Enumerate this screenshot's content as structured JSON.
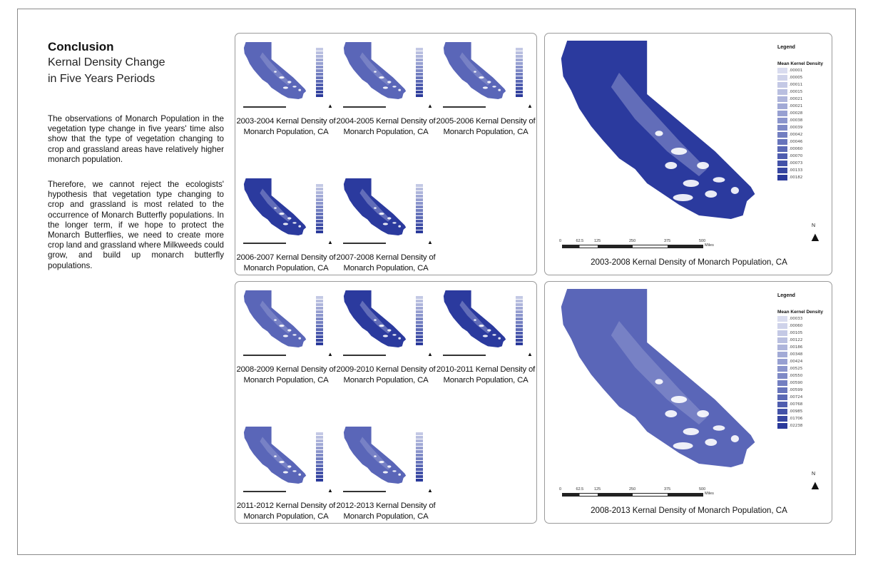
{
  "conclusion": {
    "title": "Conclusion",
    "subtitle_line1": "Kernal Density Change",
    "subtitle_line2": "in Five Years Periods",
    "paragraph1": "The observations of Monarch Population in the vegetation type change in five years' time also show that the type of vegetation changing to crop and grassland areas have relatively higher monarch population.",
    "paragraph2": "Therefore, we cannot reject the ecologists' hypothesis that vegetation type changing to crop and grassland is most related to the occurrence of Monarch Butterfly populations. In the longer term, if we hope to protect the Monarch Butterflies, we need to create more crop land and grassland where Milkweeds could grow, and build up monarch butterfly populations."
  },
  "top_panel": {
    "maps": [
      {
        "line1": "2003-2004 Kernal Density of",
        "line2": "Monarch Population, CA"
      },
      {
        "line1": "2004-2005 Kernal Density of",
        "line2": "Monarch Population, CA"
      },
      {
        "line1": "2005-2006 Kernal Density of",
        "line2": "Monarch Population, CA"
      },
      {
        "line1": "2006-2007 Kernal Density of",
        "line2": "Monarch Population, CA"
      },
      {
        "line1": "2007-2008 Kernal Density of",
        "line2": "Monarch Population, CA"
      }
    ]
  },
  "bottom_panel": {
    "maps": [
      {
        "line1": "2008-2009 Kernal Density of",
        "line2": "Monarch Population, CA"
      },
      {
        "line1": "2009-2010 Kernal Density of",
        "line2": "Monarch Population, CA"
      },
      {
        "line1": "2010-2011 Kernal Density of",
        "line2": "Monarch Population, CA"
      },
      {
        "line1": "2011-2012 Kernal Density of",
        "line2": "Monarch Population, CA"
      },
      {
        "line1": "2012-2013 Kernal Density of",
        "line2": "Monarch Population, CA"
      }
    ]
  },
  "big_map_top": {
    "caption": "2003-2008 Kernal Density of Monarch Population, CA",
    "legend_title": "Legend",
    "legend_subtitle": "Mean Kernel Density",
    "legend_values": [
      ".00001",
      ".00005",
      ".00011",
      ".00015",
      ".00021",
      ".00021",
      ".00028",
      ".00038",
      ".00039",
      ".00042",
      ".00046",
      ".00060",
      ".00070",
      ".00073",
      ".00133",
      ".00182"
    ],
    "scale_ticks": [
      "0",
      "62.5",
      "125",
      "250",
      "375",
      "500"
    ],
    "scale_unit": "Miles",
    "north": "N"
  },
  "big_map_bottom": {
    "caption": "2008-2013 Kernal Density of Monarch Population, CA",
    "legend_title": "Legend",
    "legend_subtitle": "Mean Kernel Density",
    "legend_values": [
      ".00033",
      ".00060",
      ".00105",
      ".00122",
      ".00186",
      ".00348",
      ".00424",
      ".00525",
      ".00550",
      ".00590",
      ".00599",
      ".00724",
      ".00768",
      ".00985",
      ".01706",
      ".02238"
    ],
    "scale_ticks": [
      "0",
      "62.5",
      "125",
      "250",
      "375",
      "500"
    ],
    "scale_unit": "Miles",
    "north": "N"
  },
  "colors": {
    "map_dark": "#2b3a9e",
    "map_mid": "#5a66b8",
    "map_light": "#8f98d0",
    "legend_ramp": [
      "#d9dcef",
      "#cfd3ea",
      "#c4c9e5",
      "#b9bfe0",
      "#aeb5db",
      "#a2aad6",
      "#97a0d1",
      "#8b95cc",
      "#7f8ac6",
      "#737fc1",
      "#6774bb",
      "#5b69b5",
      "#4f5daf",
      "#4352a8",
      "#3746a1",
      "#2b3a9b"
    ]
  }
}
